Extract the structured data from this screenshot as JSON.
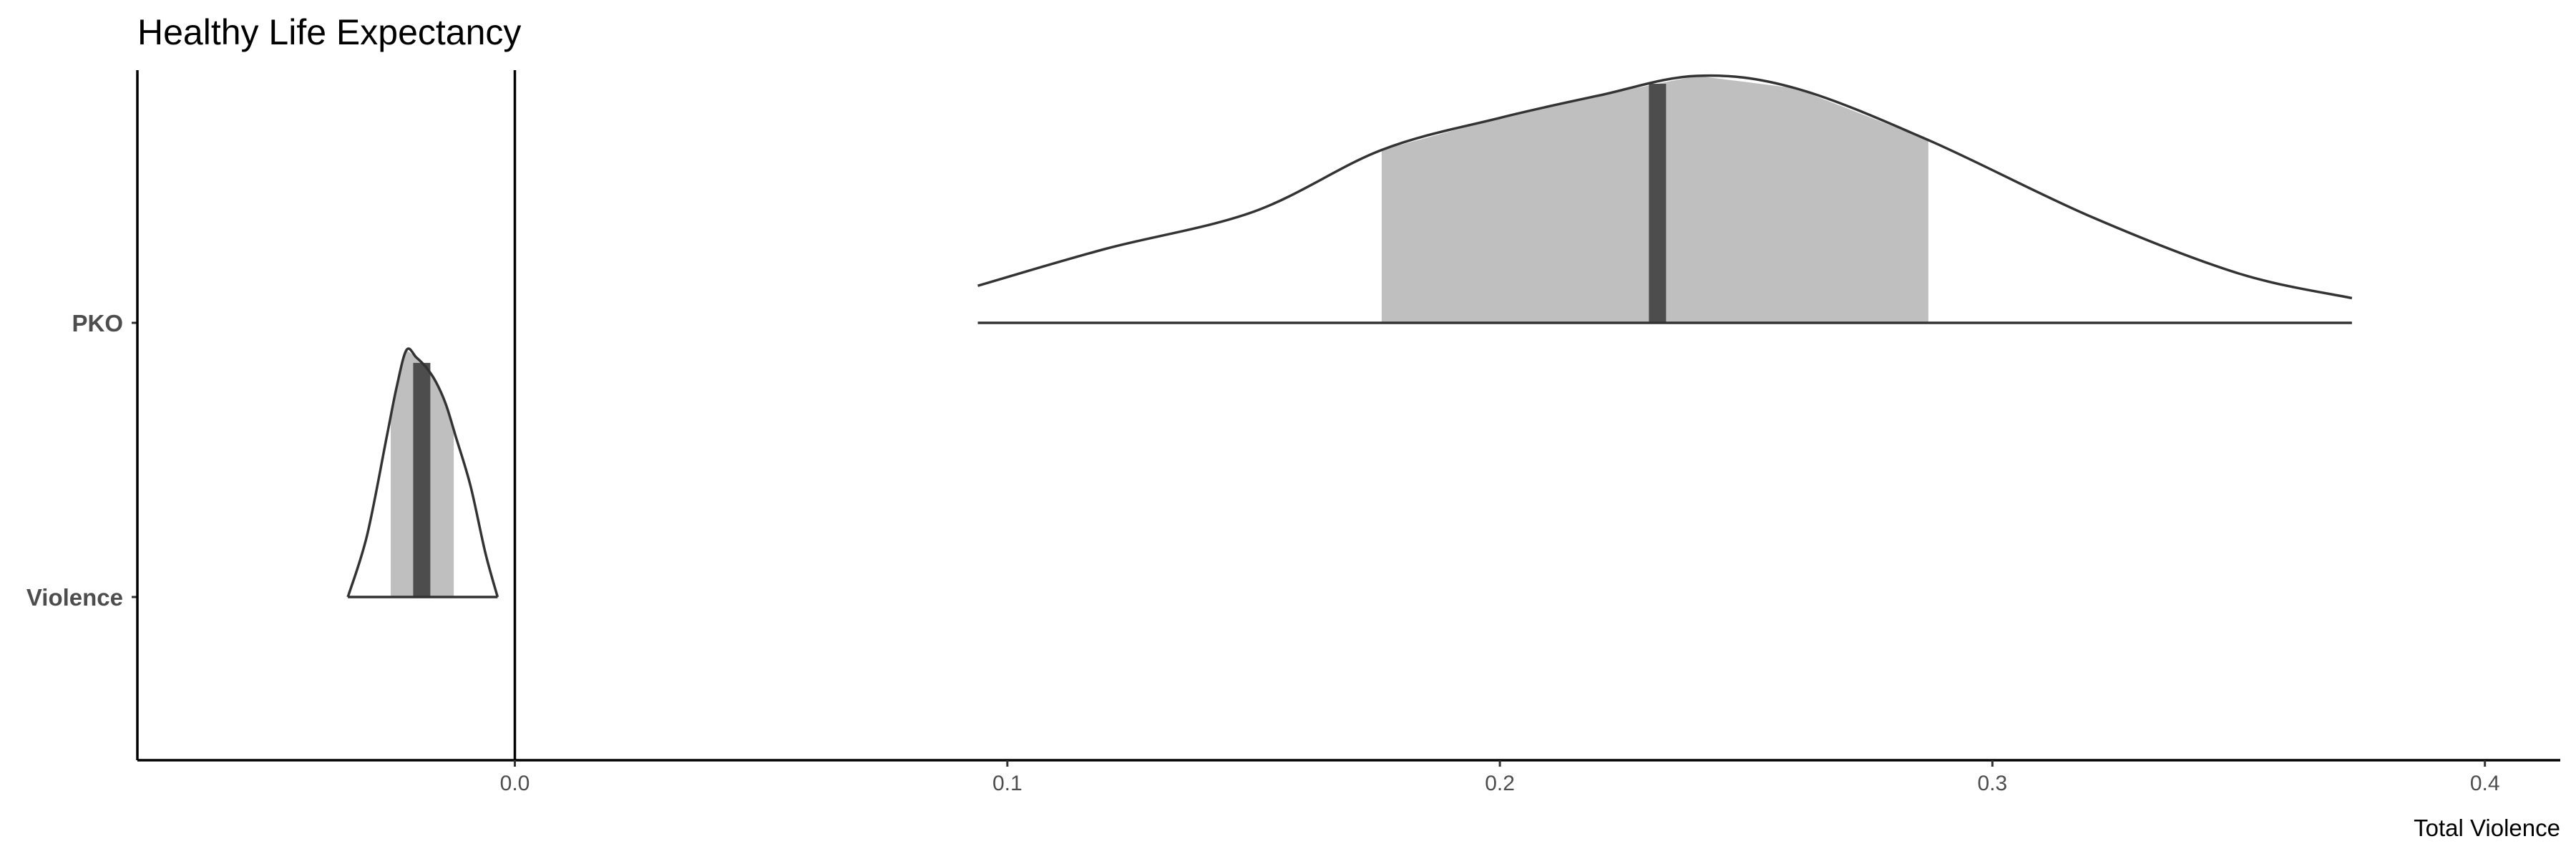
{
  "chart_data": {
    "type": "density-interval",
    "title": "Healthy Life Expectancy",
    "xlabel": "Total Violence",
    "ylabel": "",
    "xlim": [
      -0.077,
      0.416
    ],
    "x_ticks": [
      0.0,
      0.1,
      0.2,
      0.3,
      0.4
    ],
    "x_tick_labels": [
      "0.0",
      "0.1",
      "0.2",
      "0.3",
      "0.4"
    ],
    "reference_line": 0.0,
    "grid": false,
    "legend": "none",
    "colors": {
      "outline": "#333333",
      "interval_fill": "#bfbfbf",
      "median_fill": "#4d4d4d",
      "axis": "#000000"
    },
    "series": [
      {
        "name": "PKO",
        "range": [
          0.094,
          0.373
        ],
        "interval": [
          0.176,
          0.287
        ],
        "median": 0.232,
        "density_x": [
          0.094,
          0.12,
          0.15,
          0.176,
          0.2,
          0.22,
          0.24,
          0.26,
          0.287,
          0.32,
          0.35,
          0.373
        ],
        "density_y": [
          0.15,
          0.3,
          0.45,
          0.7,
          0.83,
          0.92,
          1.0,
          0.95,
          0.74,
          0.43,
          0.2,
          0.1
        ]
      },
      {
        "name": "Violence",
        "range": [
          -0.0339,
          -0.0035
        ],
        "interval": [
          -0.0252,
          -0.0124
        ],
        "median": -0.0189,
        "density_x": [
          -0.0339,
          -0.03,
          -0.026,
          -0.024,
          -0.022,
          -0.02,
          -0.018,
          -0.016,
          -0.014,
          -0.012,
          -0.009,
          -0.006,
          -0.0035
        ],
        "density_y": [
          0.0,
          0.25,
          0.65,
          0.85,
          1.0,
          0.97,
          0.93,
          0.87,
          0.78,
          0.65,
          0.45,
          0.18,
          0.0
        ]
      }
    ]
  }
}
